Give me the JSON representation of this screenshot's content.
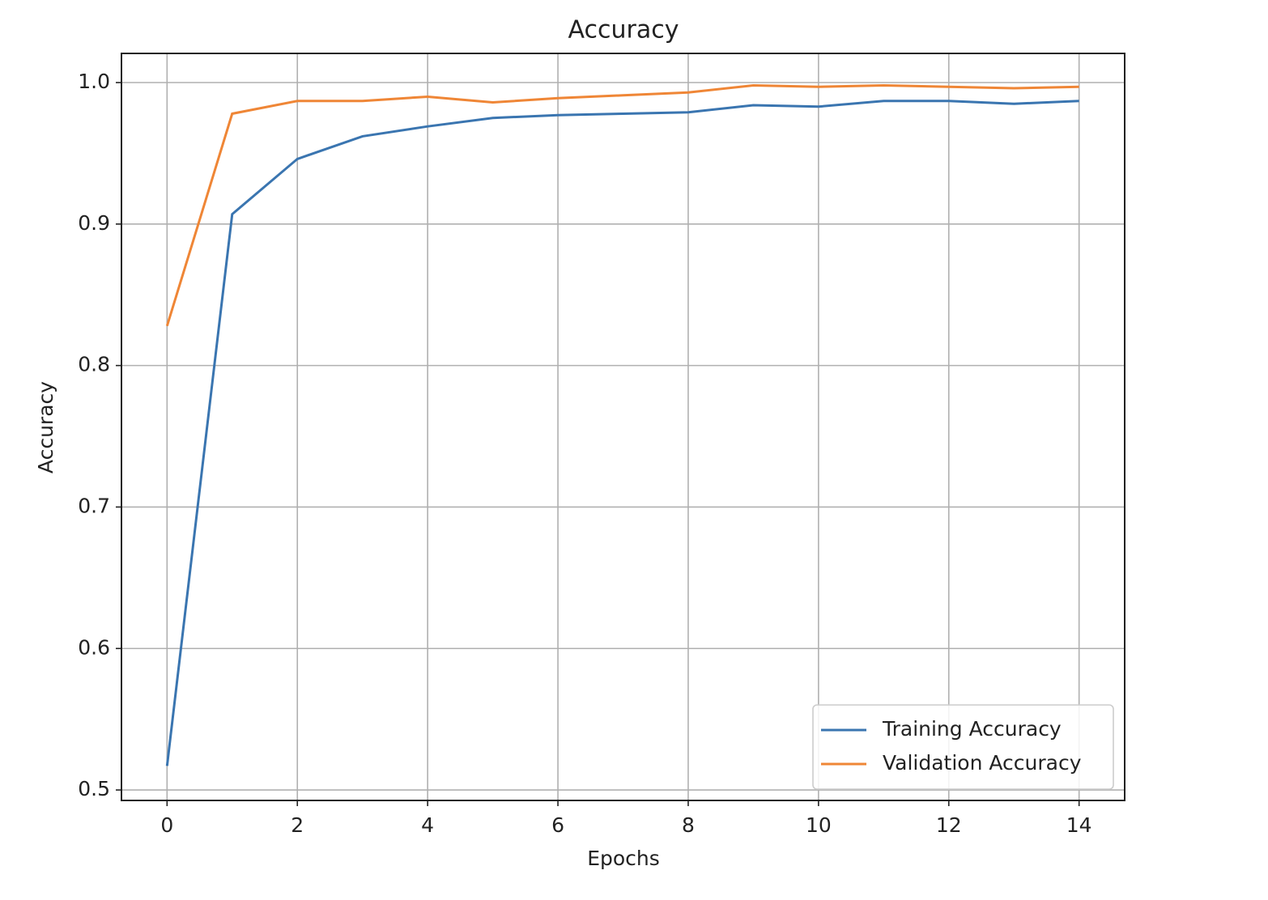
{
  "chart_data": {
    "type": "line",
    "title": "Accuracy",
    "x_label": "Epochs",
    "y_label": "Accuracy",
    "x": [
      0,
      1,
      2,
      3,
      4,
      5,
      6,
      7,
      8,
      9,
      10,
      11,
      12,
      13,
      14
    ],
    "series": [
      {
        "name": "Training Accuracy",
        "color": "#3a75b0",
        "values": [
          0.517,
          0.907,
          0.946,
          0.962,
          0.969,
          0.975,
          0.977,
          0.978,
          0.979,
          0.984,
          0.983,
          0.987,
          0.987,
          0.985,
          0.987
        ]
      },
      {
        "name": "Validation Accuracy",
        "color": "#ef8636",
        "values": [
          0.828,
          0.978,
          0.987,
          0.987,
          0.99,
          0.986,
          0.989,
          0.991,
          0.993,
          0.998,
          0.997,
          0.998,
          0.997,
          0.996,
          0.997
        ]
      }
    ],
    "xlim": [
      -0.7,
      14.7
    ],
    "ylim": [
      0.4926,
      1.0206
    ],
    "xticks": [
      0,
      2,
      4,
      6,
      8,
      10,
      12,
      14
    ],
    "yticks": [
      0.5,
      0.6,
      0.7,
      0.8,
      0.9,
      {
        "value": 1,
        "label": "1.0"
      }
    ],
    "grid": true,
    "legend": "lower right"
  }
}
